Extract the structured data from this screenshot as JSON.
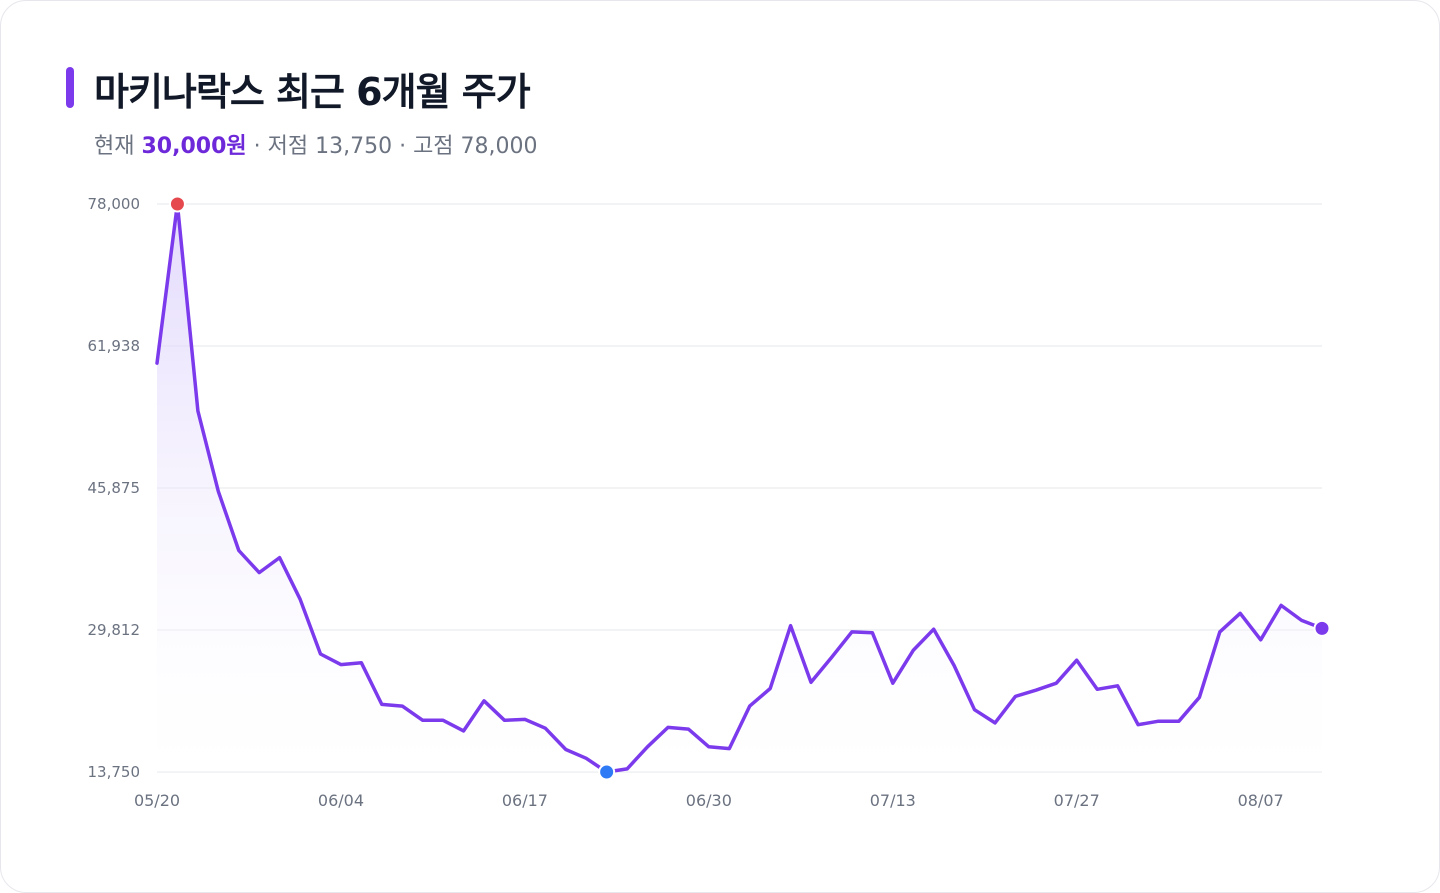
{
  "header": {
    "title": "마키나락스 최근 6개월 주가",
    "current_prefix": "현재",
    "current_value": "30,000원",
    "low_text": "· 저점 13,750",
    "high_text": "· 고점 78,000"
  },
  "colors": {
    "line": "#7c3aed",
    "high_marker": "#e5484d",
    "low_marker": "#2f7bf5",
    "last_marker": "#7c3aed",
    "grid": "#e5e7eb",
    "area_top": "#d9ccfb"
  },
  "chart_data": {
    "type": "area",
    "title": "마키나락스 최근 6개월 주가",
    "xlabel": "",
    "ylabel": "",
    "ylim": [
      13750,
      78000
    ],
    "y_ticks": [
      "78,000",
      "61,938",
      "45,875",
      "29,812",
      "13,750"
    ],
    "y_tick_values": [
      78000,
      61938,
      45875,
      29812,
      13750
    ],
    "x_ticks": [
      "05/20",
      "06/04",
      "06/17",
      "06/30",
      "07/13",
      "07/27",
      "08/07"
    ],
    "x_tick_indices": [
      0,
      9,
      18,
      27,
      36,
      45,
      54
    ],
    "grid": true,
    "high": {
      "index": 1,
      "value": 78000
    },
    "low": {
      "index": 22,
      "value": 13750
    },
    "last": {
      "index": 57,
      "value": 30000
    },
    "values": [
      60000,
      78000,
      54600,
      45500,
      38800,
      36300,
      38000,
      33300,
      27100,
      25900,
      26100,
      21400,
      21200,
      19600,
      19600,
      18400,
      21800,
      19600,
      19700,
      18700,
      16300,
      15300,
      13750,
      14100,
      16600,
      18800,
      18600,
      16600,
      16400,
      21200,
      23200,
      30300,
      23900,
      26700,
      29600,
      29500,
      23800,
      27500,
      29900,
      25800,
      20800,
      19300,
      22300,
      23000,
      23800,
      26400,
      23100,
      23500,
      19100,
      19500,
      19500,
      22200,
      29600,
      31700,
      28700,
      32600,
      30900,
      30000
    ]
  }
}
